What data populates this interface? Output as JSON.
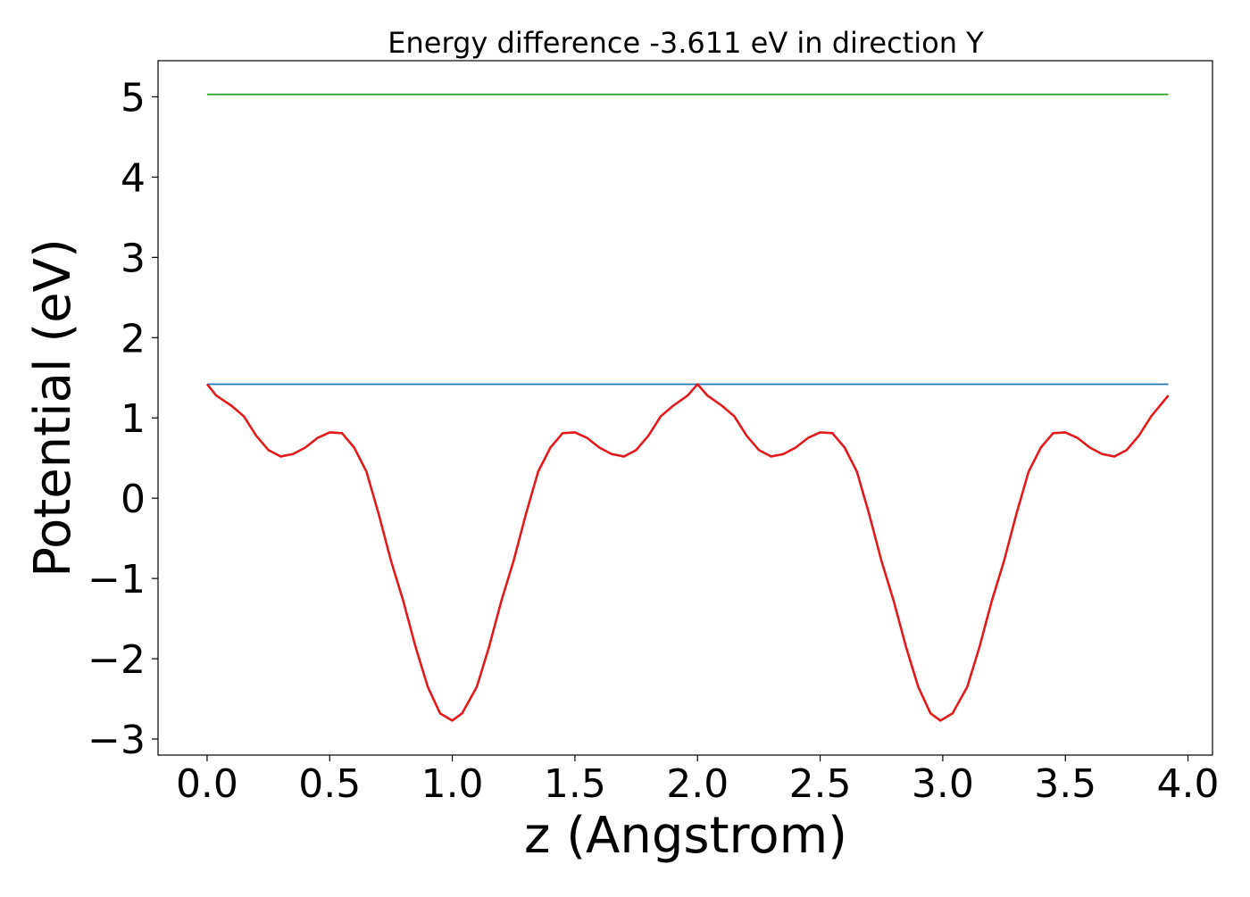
{
  "chart_data": {
    "type": "line",
    "title": "Energy difference -3.611 eV in direction Y",
    "xlabel": "z (Angstrom)",
    "ylabel": "Potential (eV)",
    "xlim": [
      -0.2,
      4.1
    ],
    "ylim": [
      -3.2,
      5.45
    ],
    "xticks": [
      0.0,
      0.5,
      1.0,
      1.5,
      2.0,
      2.5,
      3.0,
      3.5,
      4.0
    ],
    "xtick_labels": [
      "0.0",
      "0.5",
      "1.0",
      "1.5",
      "2.0",
      "2.5",
      "3.0",
      "3.5",
      "4.0"
    ],
    "yticks": [
      -3,
      -2,
      -1,
      0,
      1,
      2,
      3,
      4,
      5
    ],
    "ytick_labels": [
      "−3",
      "−2",
      "−1",
      "0",
      "1",
      "2",
      "3",
      "4",
      "5"
    ],
    "grid": false,
    "series": [
      {
        "color": "#2ca02c",
        "x": [
          0.0,
          3.92
        ],
        "y": [
          5.03,
          5.03
        ]
      },
      {
        "color": "#1f77b4",
        "x": [
          0.0,
          3.92
        ],
        "y": [
          1.42,
          1.42
        ]
      },
      {
        "color": "#e31a1c",
        "x": [
          0.0,
          0.037,
          0.1,
          0.15,
          0.2,
          0.25,
          0.3,
          0.35,
          0.4,
          0.45,
          0.5,
          0.55,
          0.6,
          0.65,
          0.7,
          0.75,
          0.8,
          0.85,
          0.9,
          0.95,
          1.0,
          1.04,
          1.1,
          1.15,
          1.2,
          1.25,
          1.3,
          1.35,
          1.4,
          1.45,
          1.5,
          1.55,
          1.6,
          1.65,
          1.7,
          1.75,
          1.8,
          1.85,
          1.9,
          1.96,
          2.0,
          2.04,
          2.1,
          2.15,
          2.2,
          2.25,
          2.3,
          2.35,
          2.4,
          2.45,
          2.5,
          2.55,
          2.6,
          2.65,
          2.7,
          2.75,
          2.8,
          2.85,
          2.9,
          2.95,
          2.99,
          3.04,
          3.1,
          3.15,
          3.2,
          3.25,
          3.3,
          3.35,
          3.4,
          3.45,
          3.5,
          3.55,
          3.6,
          3.65,
          3.7,
          3.75,
          3.8,
          3.85,
          3.92
        ],
        "y": [
          1.42,
          1.28,
          1.15,
          1.02,
          0.78,
          0.6,
          0.52,
          0.55,
          0.63,
          0.75,
          0.82,
          0.81,
          0.63,
          0.33,
          -0.2,
          -0.78,
          -1.28,
          -1.85,
          -2.35,
          -2.68,
          -2.77,
          -2.68,
          -2.35,
          -1.85,
          -1.28,
          -0.78,
          -0.2,
          0.33,
          0.63,
          0.81,
          0.82,
          0.75,
          0.63,
          0.55,
          0.52,
          0.6,
          0.78,
          1.02,
          1.15,
          1.28,
          1.42,
          1.28,
          1.15,
          1.02,
          0.78,
          0.6,
          0.52,
          0.55,
          0.63,
          0.75,
          0.82,
          0.81,
          0.63,
          0.33,
          -0.2,
          -0.78,
          -1.28,
          -1.85,
          -2.35,
          -2.68,
          -2.77,
          -2.68,
          -2.35,
          -1.85,
          -1.28,
          -0.78,
          -0.2,
          0.33,
          0.63,
          0.81,
          0.82,
          0.75,
          0.63,
          0.55,
          0.52,
          0.6,
          0.78,
          1.02,
          1.28
        ]
      }
    ]
  }
}
